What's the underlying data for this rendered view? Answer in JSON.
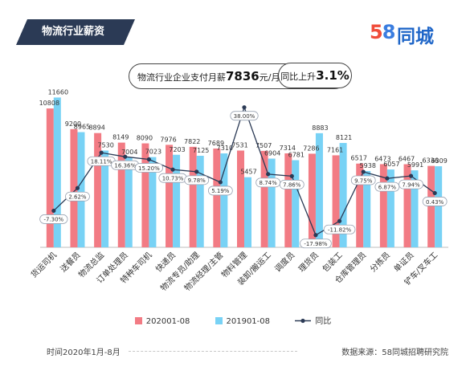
{
  "header": {
    "tag": "物流行业薪资",
    "logo_num_5": "5",
    "logo_num_8": "8",
    "logo_text": "同城"
  },
  "summary": {
    "prefix": "物流行业企业支付月薪",
    "value": "7836",
    "unit": "元/月",
    "yoy_prefix": "同比上升",
    "yoy_value": "3.1%"
  },
  "colors": {
    "series_2020": "#f27b84",
    "series_2019": "#78d2f5",
    "yoy_line": "#2b3a55",
    "tag_bg": "#2b3a55"
  },
  "chart_data": {
    "type": "bar",
    "categories": [
      "货运司机",
      "送餐员",
      "物流总监",
      "订单处理员",
      "特种车司机",
      "快递员",
      "物流专员/助理",
      "物流经理/主管",
      "物料管理",
      "装卸/搬运工",
      "调度员",
      "理货员",
      "包装工",
      "仓库管理员",
      "分拣员",
      "单证员",
      "铲车/叉车工"
    ],
    "series": [
      {
        "name": "202001-08",
        "values": [
          10808,
          9200,
          8894,
          8149,
          8090,
          7976,
          7822,
          7689,
          7531,
          7507,
          7314,
          7286,
          7161,
          6517,
          6473,
          6467,
          6336
        ]
      },
      {
        "name": "201901-08",
        "values": [
          11660,
          8965,
          7530,
          7004,
          7023,
          7203,
          7125,
          7310,
          5457,
          6904,
          6781,
          8883,
          8121,
          5938,
          6057,
          5991,
          6309
        ]
      }
    ],
    "line": {
      "name": "同比",
      "values": [
        -7.3,
        2.62,
        18.11,
        16.36,
        15.2,
        10.73,
        9.78,
        5.19,
        38.0,
        8.74,
        7.86,
        -17.98,
        -11.82,
        9.75,
        6.87,
        7.94,
        0.43
      ]
    },
    "line_labels": [
      "-7.30%",
      "2.62%",
      "18.11%",
      "16.36%",
      "15.20%",
      "10.73%",
      "9.78%",
      "5.19%",
      "38.00%",
      "8.74%",
      "7.86%",
      "-17.98%",
      "-11.82%",
      "9.75%",
      "6.87%",
      "7.94%",
      "0.43%"
    ],
    "ylim": [
      0,
      12000
    ],
    "line_ylim": [
      -55,
      40
    ],
    "grid": false,
    "legend_position": "bottom"
  },
  "legend": {
    "a": "202001-08",
    "b": "201901-08",
    "c": "同比"
  },
  "footer": {
    "period": "时间2020年1月-8月",
    "source": "数据来源：58同城招聘研究院"
  }
}
